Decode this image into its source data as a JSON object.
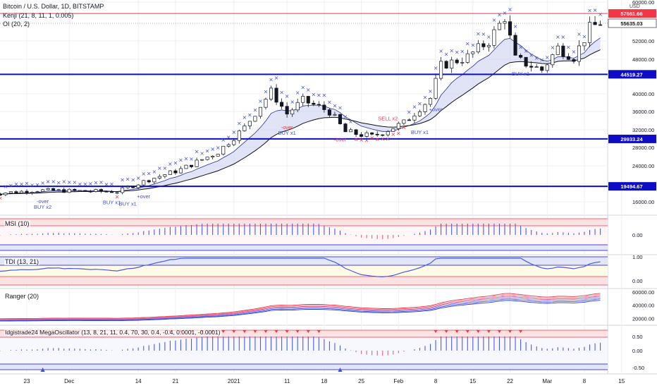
{
  "symbol_title": "Bitcoin / U.S. Dollar, 1D, BITSTAMP",
  "indicators": {
    "kenji": "Kenji (21, 8, 11, 1, 0.005)",
    "oi": "OI (20, 2)"
  },
  "currency": "USD",
  "colors": {
    "up_candle": "#ffffff",
    "down_candle": "#131722",
    "level_line": "#0d0dc8",
    "price_line": "#f23645",
    "cloud": "#c8cdf0",
    "ema_fast": "#2a2e8c",
    "ema_slow": "#111111",
    "buy": "#3f4fd8",
    "sell": "#f23645"
  },
  "price_scale": {
    "ticks": [
      "60000.00",
      "52000.00",
      "48000.00",
      "40000.00",
      "36000.00",
      "32000.00",
      "28000.00",
      "24000.00",
      "20000.00",
      "16000.00"
    ],
    "top_partial": "60000.00"
  },
  "levels": [
    {
      "value": 57661.66,
      "label": "57661.66",
      "color": "#f23645"
    },
    {
      "value": 44519.27,
      "label": "44519.27",
      "color": "#0d0dc8"
    },
    {
      "value": 29933.24,
      "label": "29933.24",
      "color": "#0d0dc8"
    },
    {
      "value": 19494.67,
      "label": "19494.67",
      "color": "#0d0dc8"
    }
  ],
  "last_price": {
    "value": 55635.03,
    "label": "55635.03"
  },
  "signals": [
    {
      "text": "-over",
      "date": "Nov 26",
      "kind": "buy"
    },
    {
      "text": "BUY x2",
      "date": "Nov 26",
      "kind": "buy"
    },
    {
      "text": "BUY x1",
      "date": "Dec 9",
      "kind": "buy"
    },
    {
      "text": "BUY x1",
      "date": "Dec 12",
      "kind": "buy"
    },
    {
      "text": "+over",
      "date": "Dec 15",
      "kind": "buy"
    },
    {
      "text": "BUY x1",
      "date": "Jan 11",
      "kind": "buy"
    },
    {
      "text": "-over",
      "date": "Jan 11",
      "kind": "sell"
    },
    {
      "text": "-over",
      "date": "Jan 21",
      "kind": "sell"
    },
    {
      "text": "SELL x2",
      "date": "Jan 30",
      "kind": "sell"
    },
    {
      "text": "BUY x1",
      "date": "Feb 5",
      "kind": "buy"
    },
    {
      "text": "+over",
      "date": "Feb 8",
      "kind": "buy"
    },
    {
      "text": "BUY x1",
      "date": "Feb 24",
      "kind": "buy"
    }
  ],
  "panes": {
    "msi": {
      "title": "MSI (10)",
      "ticks": [
        "0.00"
      ]
    },
    "tdi": {
      "title": "TDI (13, 21)",
      "ticks": [
        "1.00",
        "0.00"
      ]
    },
    "ranger": {
      "title": "Ranger (20)",
      "ticks": [
        "60000.00",
        "40000.00",
        "20000.00"
      ]
    },
    "mega": {
      "title": "Idgistrade24 MegaOscillator (13, 8, 21, 11, 0.4, 70, 30, 0.4, -0.4, 0.0001, -0.0001)",
      "ticks": [
        "0.50",
        "0.00",
        "-0.50"
      ]
    }
  },
  "time_axis": {
    "labels": [
      {
        "text": "23",
        "date": "Nov 23"
      },
      {
        "text": "Dec",
        "date": "Dec 1"
      },
      {
        "text": "14",
        "date": "Dec 14"
      },
      {
        "text": "21",
        "date": "Dec 21"
      },
      {
        "text": "2021",
        "date": "Jan 1"
      },
      {
        "text": "11",
        "date": "Jan 11"
      },
      {
        "text": "18",
        "date": "Jan 18"
      },
      {
        "text": "25",
        "date": "Jan 25"
      },
      {
        "text": "Feb",
        "date": "Feb 1"
      },
      {
        "text": "8",
        "date": "Feb 8"
      },
      {
        "text": "15",
        "date": "Feb 15"
      },
      {
        "text": "22",
        "date": "Feb 22"
      },
      {
        "text": "Mar",
        "date": "Mar 1"
      },
      {
        "text": "8",
        "date": "Mar 8"
      },
      {
        "text": "15",
        "date": "Mar 15"
      }
    ]
  }
}
